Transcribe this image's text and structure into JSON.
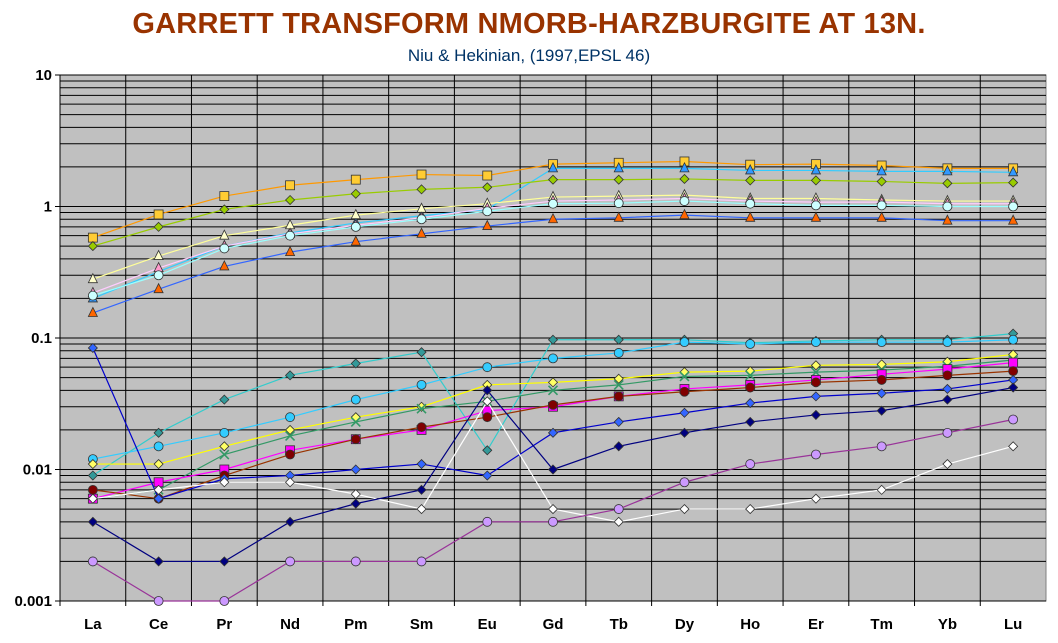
{
  "title": "GARRETT TRANSFORM NMORB-HARZBURGITE AT 13N.",
  "subtitle": "Niu & Hekinian, (1997,EPSL 46)",
  "chart_data": {
    "type": "line",
    "title": "GARRETT TRANSFORM NMORB-HARZBURGITE AT 13N.",
    "subtitle": "Niu & Hekinian, (1997,EPSL 46)",
    "xlabel": "",
    "ylabel": "",
    "yscale": "log",
    "ylim": [
      0.001,
      10
    ],
    "ytick_labels": [
      "0.001",
      "0.01",
      "0.1",
      "1",
      "10"
    ],
    "categories": [
      "La",
      "Ce",
      "Pr",
      "Nd",
      "Pm",
      "Sm",
      "Eu",
      "Gd",
      "Tb",
      "Dy",
      "Ho",
      "Er",
      "Tm",
      "Yb",
      "Lu"
    ],
    "grid": true,
    "plot_background": "#c0c0c0",
    "series": [
      {
        "color": "#ff9900",
        "marker": "square",
        "marker_fill": "#ffcc33",
        "values": [
          0.58,
          0.87,
          1.2,
          1.45,
          1.6,
          1.75,
          1.72,
          2.1,
          2.15,
          2.2,
          2.08,
          2.1,
          2.05,
          1.95,
          1.95
        ]
      },
      {
        "color": "#33ccff",
        "marker": "triangle",
        "marker_fill": "#3399ff",
        "values": [
          0.2,
          0.32,
          0.5,
          0.63,
          0.75,
          0.85,
          0.95,
          1.95,
          1.95,
          1.95,
          1.88,
          1.88,
          1.85,
          1.85,
          1.82
        ]
      },
      {
        "color": "#99cc00",
        "marker": "diamond",
        "marker_fill": "#99cc00",
        "values": [
          0.5,
          0.7,
          0.95,
          1.12,
          1.25,
          1.35,
          1.4,
          1.6,
          1.6,
          1.62,
          1.58,
          1.58,
          1.55,
          1.5,
          1.52
        ]
      },
      {
        "color": "#ffff99",
        "marker": "triangle",
        "marker_fill": "#ffffcc",
        "values": [
          0.28,
          0.42,
          0.6,
          0.72,
          0.86,
          0.96,
          1.05,
          1.18,
          1.2,
          1.22,
          1.15,
          1.15,
          1.12,
          1.1,
          1.1
        ]
      },
      {
        "color": "#ffccff",
        "marker": "triangle",
        "marker_fill": "#ff99cc",
        "values": [
          0.22,
          0.34,
          0.5,
          0.62,
          0.72,
          0.82,
          0.97,
          1.1,
          1.12,
          1.15,
          1.1,
          1.08,
          1.08,
          1.05,
          1.05
        ]
      },
      {
        "color": "#99ffff",
        "marker": "circle",
        "marker_fill": "#ccffff",
        "values": [
          0.21,
          0.3,
          0.48,
          0.6,
          0.7,
          0.8,
          0.92,
          1.05,
          1.06,
          1.1,
          1.05,
          1.02,
          1.02,
          1.0,
          1.0
        ]
      },
      {
        "color": "#3366ff",
        "marker": "triangle",
        "marker_fill": "#ff6600",
        "values": [
          0.155,
          0.235,
          0.35,
          0.45,
          0.54,
          0.62,
          0.71,
          0.8,
          0.82,
          0.86,
          0.82,
          0.82,
          0.82,
          0.78,
          0.78
        ]
      },
      {
        "color": "#33cccc",
        "marker": "diamond",
        "marker_fill": "#339999",
        "values": [
          0.009,
          0.019,
          0.034,
          0.052,
          0.064,
          0.078,
          0.014,
          0.097,
          0.097,
          0.097,
          0.092,
          0.095,
          0.097,
          0.097,
          0.108
        ]
      },
      {
        "color": "#33ccff",
        "marker": "circle",
        "marker_fill": "#33ccff",
        "values": [
          0.012,
          0.015,
          0.019,
          0.025,
          0.034,
          0.044,
          0.06,
          0.07,
          0.077,
          0.093,
          0.09,
          0.093,
          0.093,
          0.093,
          0.097
        ]
      },
      {
        "color": "#ffff00",
        "marker": "diamond",
        "marker_fill": "#ffff66",
        "values": [
          0.011,
          0.011,
          0.015,
          0.02,
          0.025,
          0.03,
          0.044,
          0.046,
          0.049,
          0.055,
          0.056,
          0.062,
          0.063,
          0.066,
          0.075
        ]
      },
      {
        "color": "#339966",
        "marker": "cross",
        "marker_fill": "#339966",
        "values": [
          0.006,
          0.007,
          0.013,
          0.018,
          0.023,
          0.029,
          0.033,
          0.04,
          0.044,
          0.051,
          0.052,
          0.055,
          0.057,
          0.061,
          0.068
        ]
      },
      {
        "color": "#ff00ff",
        "marker": "square",
        "marker_fill": "#ff00ff",
        "values": [
          0.006,
          0.008,
          0.01,
          0.014,
          0.017,
          0.02,
          0.028,
          0.03,
          0.036,
          0.041,
          0.044,
          0.048,
          0.053,
          0.058,
          0.065
        ]
      },
      {
        "color": "#993300",
        "marker": "circle",
        "marker_fill": "#800000",
        "values": [
          0.007,
          0.006,
          0.009,
          0.013,
          0.017,
          0.021,
          0.025,
          0.031,
          0.036,
          0.039,
          0.042,
          0.046,
          0.048,
          0.052,
          0.056
        ]
      },
      {
        "color": "#0000cc",
        "marker": "diamond",
        "marker_fill": "#3366ff",
        "values": [
          0.084,
          0.006,
          0.0085,
          0.009,
          0.01,
          0.011,
          0.009,
          0.019,
          0.023,
          0.027,
          0.032,
          0.036,
          0.038,
          0.041,
          0.048
        ]
      },
      {
        "color": "#ffffff",
        "marker": "diamond",
        "marker_fill": "#ffffff",
        "values": [
          0.006,
          0.007,
          0.008,
          0.008,
          0.0065,
          0.005,
          0.033,
          0.005,
          0.004,
          0.005,
          0.005,
          0.006,
          0.007,
          0.011,
          0.015
        ]
      },
      {
        "color": "#000080",
        "marker": "diamond",
        "marker_fill": "#000080",
        "values": [
          0.004,
          0.002,
          0.002,
          0.004,
          0.0055,
          0.007,
          0.04,
          0.01,
          0.015,
          0.019,
          0.023,
          0.026,
          0.028,
          0.034,
          0.042
        ]
      },
      {
        "color": "#993399",
        "marker": "circle",
        "marker_fill": "#cc99ff",
        "values": [
          0.002,
          0.001,
          0.001,
          0.002,
          0.002,
          0.002,
          0.004,
          0.004,
          0.005,
          0.008,
          0.011,
          0.013,
          0.015,
          0.019,
          0.024
        ]
      }
    ]
  }
}
